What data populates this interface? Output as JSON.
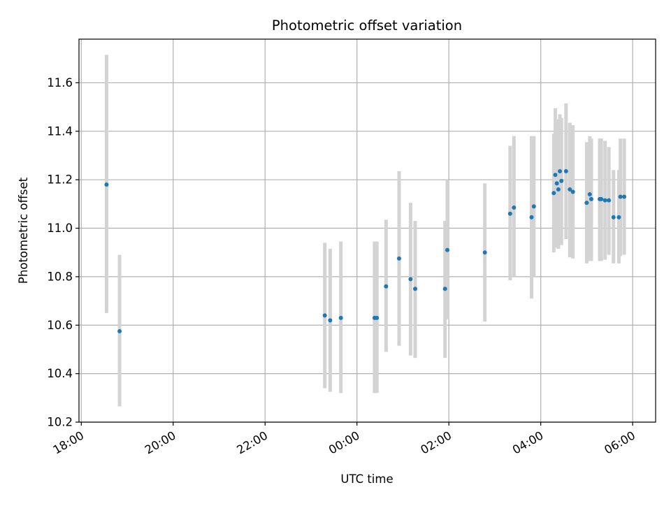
{
  "chart_data": {
    "type": "scatter",
    "title": "Photometric offset variation",
    "xlabel": "UTC time",
    "ylabel": "Photometric offset",
    "x_axis_type": "datetime",
    "x_ticks": [
      "18:00",
      "20:00",
      "22:00",
      "00:00",
      "02:00",
      "04:00",
      "06:00"
    ],
    "y_ticks": [
      "10.2",
      "10.4",
      "10.6",
      "10.8",
      "11.0",
      "11.2",
      "11.4",
      "11.6"
    ],
    "xlim": [
      "17:57",
      "06:30"
    ],
    "ylim": [
      10.2,
      11.78
    ],
    "grid": true,
    "error_bars": true,
    "colors": {
      "points": "#1f77b4",
      "error_bars": "#d3d3d3",
      "grid": "#b0b0b0"
    },
    "points": [
      {
        "time": "18:33",
        "y": 11.18,
        "ylow": 10.65,
        "yhigh": 11.715
      },
      {
        "time": "18:50",
        "y": 10.575,
        "ylow": 10.265,
        "yhigh": 10.89
      },
      {
        "time": "23:18",
        "y": 10.64,
        "ylow": 10.34,
        "yhigh": 10.94
      },
      {
        "time": "23:25",
        "y": 10.62,
        "ylow": 10.325,
        "yhigh": 10.915
      },
      {
        "time": "23:39",
        "y": 10.63,
        "ylow": 10.32,
        "yhigh": 10.945
      },
      {
        "time": "00:23",
        "y": 10.63,
        "ylow": 10.32,
        "yhigh": 10.945
      },
      {
        "time": "00:26",
        "y": 10.63,
        "ylow": 10.32,
        "yhigh": 10.945
      },
      {
        "time": "00:38",
        "y": 10.76,
        "ylow": 10.49,
        "yhigh": 11.035
      },
      {
        "time": "00:55",
        "y": 10.875,
        "ylow": 10.515,
        "yhigh": 11.235
      },
      {
        "time": "01:10",
        "y": 10.79,
        "ylow": 10.475,
        "yhigh": 11.105
      },
      {
        "time": "01:16",
        "y": 10.75,
        "ylow": 10.465,
        "yhigh": 11.03
      },
      {
        "time": "01:55",
        "y": 10.75,
        "ylow": 10.465,
        "yhigh": 11.03
      },
      {
        "time": "01:58",
        "y": 10.91,
        "ylow": 10.625,
        "yhigh": 11.2
      },
      {
        "time": "02:47",
        "y": 10.9,
        "ylow": 10.615,
        "yhigh": 11.185
      },
      {
        "time": "03:20",
        "y": 11.06,
        "ylow": 10.785,
        "yhigh": 11.34
      },
      {
        "time": "03:25",
        "y": 11.085,
        "ylow": 10.8,
        "yhigh": 11.38
      },
      {
        "time": "03:48",
        "y": 11.045,
        "ylow": 10.71,
        "yhigh": 11.38
      },
      {
        "time": "03:51",
        "y": 11.09,
        "ylow": 10.8,
        "yhigh": 11.38
      },
      {
        "time": "04:17",
        "y": 11.145,
        "ylow": 10.9,
        "yhigh": 11.39
      },
      {
        "time": "04:19",
        "y": 11.22,
        "ylow": 10.945,
        "yhigh": 11.495
      },
      {
        "time": "04:21",
        "y": 11.185,
        "ylow": 10.92,
        "yhigh": 11.45
      },
      {
        "time": "04:23",
        "y": 11.16,
        "ylow": 10.915,
        "yhigh": 11.43
      },
      {
        "time": "04:25",
        "y": 11.235,
        "ylow": 10.955,
        "yhigh": 11.47
      },
      {
        "time": "04:27",
        "y": 11.195,
        "ylow": 10.93,
        "yhigh": 11.455
      },
      {
        "time": "04:33",
        "y": 11.235,
        "ylow": 10.955,
        "yhigh": 11.515
      },
      {
        "time": "04:38",
        "y": 11.16,
        "ylow": 10.88,
        "yhigh": 11.435
      },
      {
        "time": "04:42",
        "y": 11.15,
        "ylow": 10.875,
        "yhigh": 11.425
      },
      {
        "time": "05:00",
        "y": 11.105,
        "ylow": 10.855,
        "yhigh": 11.355
      },
      {
        "time": "05:04",
        "y": 11.14,
        "ylow": 10.865,
        "yhigh": 11.38
      },
      {
        "time": "05:06",
        "y": 11.12,
        "ylow": 10.865,
        "yhigh": 11.37
      },
      {
        "time": "05:17",
        "y": 11.12,
        "ylow": 10.865,
        "yhigh": 11.37
      },
      {
        "time": "05:19",
        "y": 11.12,
        "ylow": 10.865,
        "yhigh": 11.37
      },
      {
        "time": "05:24",
        "y": 11.115,
        "ylow": 10.87,
        "yhigh": 11.36
      },
      {
        "time": "05:29",
        "y": 11.115,
        "ylow": 10.89,
        "yhigh": 11.335
      },
      {
        "time": "05:35",
        "y": 11.045,
        "ylow": 10.855,
        "yhigh": 11.24
      },
      {
        "time": "05:42",
        "y": 11.045,
        "ylow": 10.855,
        "yhigh": 11.24
      },
      {
        "time": "05:44",
        "y": 11.13,
        "ylow": 10.885,
        "yhigh": 11.37
      },
      {
        "time": "05:49",
        "y": 11.13,
        "ylow": 10.89,
        "yhigh": 11.37
      }
    ]
  }
}
